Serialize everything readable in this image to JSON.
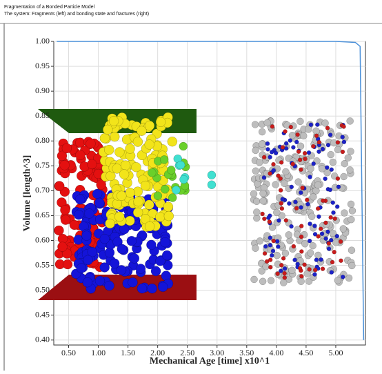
{
  "chart_data": {
    "type": "line",
    "title": "Fragmentation of a Bonded Particle Model",
    "subtitle": "The system: Fragments (left) and bonding state and fractures (right)",
    "x_label": "Mechanical Age [time] x10^1",
    "y_label": "Volume [length^3]",
    "xlim": [
      0.25,
      5.5
    ],
    "ylim": [
      0.39,
      1.0
    ],
    "xticks": [
      {
        "value": 0.5,
        "label": "0.50"
      },
      {
        "value": 1,
        "label": "1.00"
      },
      {
        "value": 1.5,
        "label": "1.50"
      },
      {
        "value": 2,
        "label": "2.00"
      },
      {
        "value": 2.5,
        "label": "2.50"
      },
      {
        "value": 3,
        "label": "3.00"
      },
      {
        "value": 3.5,
        "label": "3.50"
      },
      {
        "value": 4,
        "label": "4.00"
      },
      {
        "value": 4.5,
        "label": "4.50"
      },
      {
        "value": 5,
        "label": "5.00"
      }
    ],
    "yticks": [
      {
        "value": 0.4,
        "label": "0.40"
      },
      {
        "value": 0.45,
        "label": "0.45"
      },
      {
        "value": 0.5,
        "label": "0.50"
      },
      {
        "value": 0.55,
        "label": "0.55"
      },
      {
        "value": 0.6,
        "label": "0.60"
      },
      {
        "value": 0.65,
        "label": "0.65"
      },
      {
        "value": 0.7,
        "label": "0.70"
      },
      {
        "value": 0.75,
        "label": "0.75"
      },
      {
        "value": 0.8,
        "label": "0.80"
      },
      {
        "value": 0.85,
        "label": "0.85"
      },
      {
        "value": 0.9,
        "label": "0.90"
      },
      {
        "value": 0.95,
        "label": "0.95"
      },
      {
        "value": 1,
        "label": "1.00"
      }
    ],
    "grid": true,
    "series": [
      {
        "color": "#4a90d9",
        "x": [
          0.3,
          5.0,
          5.33,
          5.41,
          5.47
        ],
        "values": [
          1.0,
          1.0,
          0.998,
          0.99,
          0.4
        ]
      }
    ]
  }
}
